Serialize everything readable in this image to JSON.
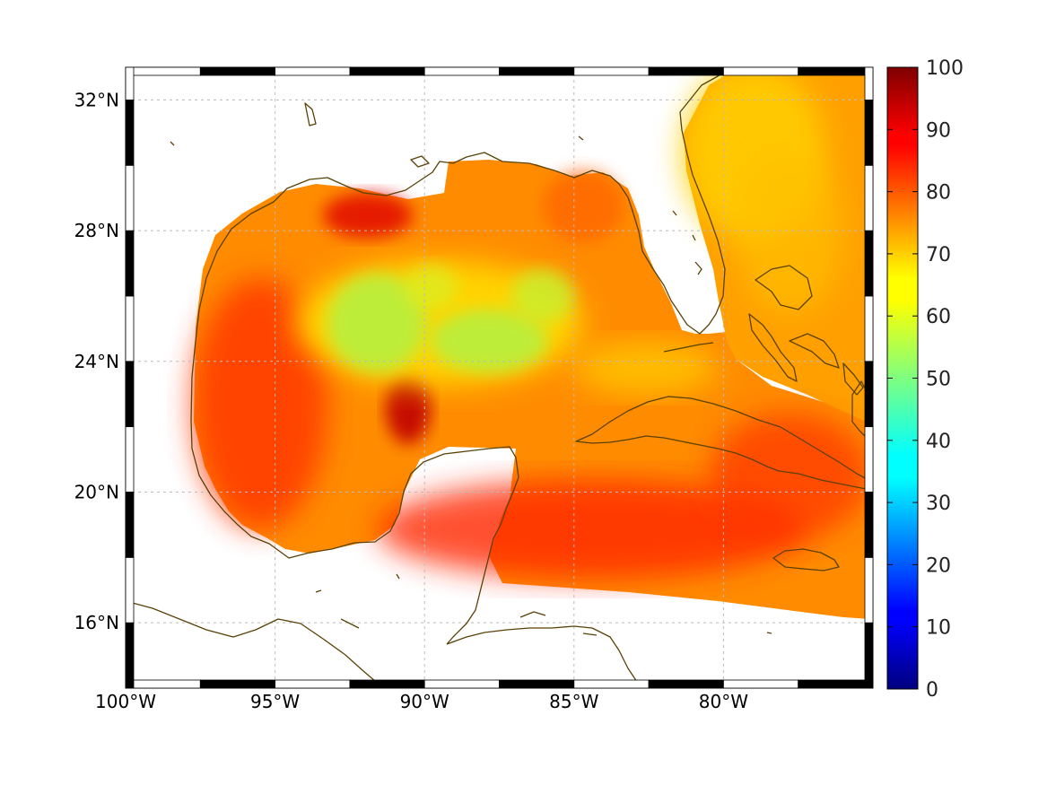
{
  "map": {
    "lon_range": [
      -100,
      -75
    ],
    "lat_range": [
      14,
      33
    ],
    "x_ticks": [
      {
        "lon": -100,
        "label": "100°W"
      },
      {
        "lon": -95,
        "label": "95°W"
      },
      {
        "lon": -90,
        "label": "90°W"
      },
      {
        "lon": -85,
        "label": "85°W"
      },
      {
        "lon": -80,
        "label": "80°W"
      }
    ],
    "y_ticks": [
      {
        "lat": 32,
        "label": "32°N"
      },
      {
        "lat": 28,
        "label": "28°N"
      },
      {
        "lat": 24,
        "label": "24°N"
      },
      {
        "lat": 20,
        "label": "20°N"
      },
      {
        "lat": 16,
        "label": "16°N"
      }
    ],
    "frame_style": "alternating black/white border",
    "coastline_color": "#5a4108",
    "grid": true
  },
  "colorbar": {
    "range": [
      0,
      100
    ],
    "ticks": [
      "0",
      "10",
      "20",
      "30",
      "40",
      "50",
      "60",
      "70",
      "80",
      "90",
      "100"
    ],
    "colormap": "jet"
  }
}
